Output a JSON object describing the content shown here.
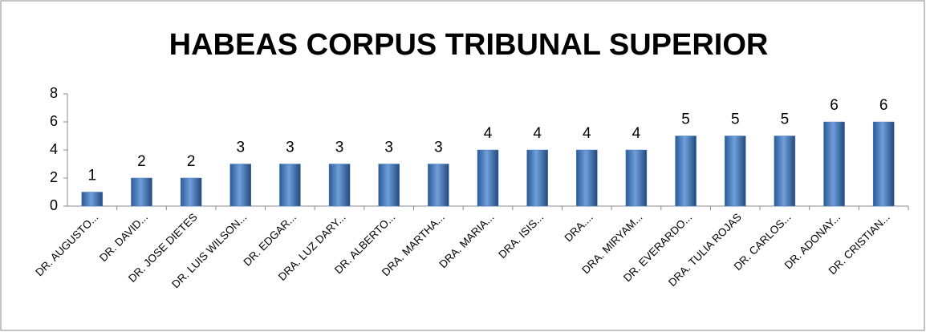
{
  "chart_data": {
    "type": "bar",
    "title": "HABEAS CORPUS TRIBUNAL SUPERIOR",
    "categories": [
      "DR. AUGUSTO...",
      "DR. DAVID...",
      "DR. JOSE DIETES",
      "DR. LUIS WILSON...",
      "DR. EDGAR...",
      "DRA. LUZ DARY...",
      "DR. ALBERTO...",
      "DRA. MARTHA...",
      "DRA. MARIA...",
      "DRA. ISIS...",
      "DRA....",
      "DRA. MIRYAM...",
      "DR. EVERARDO...",
      "DRA. TULIA ROJAS",
      "DR. CARLOS...",
      "DR. ADONAY...",
      "DR. CRISTIAN..."
    ],
    "values": [
      1,
      2,
      2,
      3,
      3,
      3,
      3,
      3,
      4,
      4,
      4,
      4,
      5,
      5,
      5,
      6,
      6
    ],
    "color": "#4a7ebb",
    "ylim": [
      0,
      8
    ],
    "yticks": [
      0,
      2,
      4,
      6,
      8
    ],
    "grid": false
  }
}
